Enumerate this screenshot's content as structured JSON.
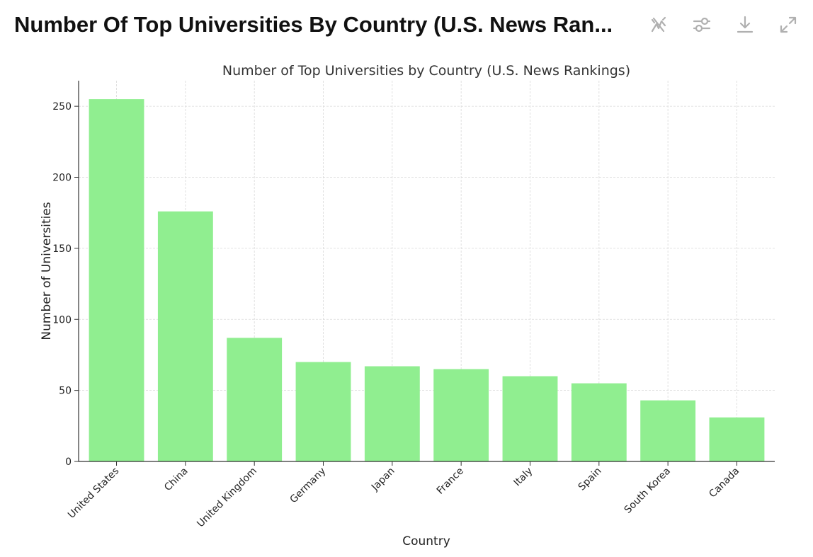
{
  "header": {
    "title": "Number Of Top Universities By Country (U.S. News Ran...",
    "toolbar": [
      {
        "name": "hide-interactive-button",
        "icon": "sparkle-off-icon"
      },
      {
        "name": "chart-settings-button",
        "icon": "sliders-icon"
      },
      {
        "name": "download-button",
        "icon": "download-icon"
      },
      {
        "name": "expand-button",
        "icon": "expand-icon"
      }
    ]
  },
  "colors": {
    "bar": "#90ee90",
    "grid": "#d9d9d9",
    "axis": "#333333",
    "text": "#222222",
    "icon": "#b0b0b0"
  },
  "chart_data": {
    "type": "bar",
    "title": "Number of Top Universities by Country (U.S. News Rankings)",
    "xlabel": "Country",
    "ylabel": "Number of Universities",
    "categories": [
      "United States",
      "China",
      "United Kingdom",
      "Germany",
      "Japan",
      "France",
      "Italy",
      "Spain",
      "South Korea",
      "Canada"
    ],
    "values": [
      255,
      176,
      87,
      70,
      67,
      65,
      60,
      55,
      43,
      31
    ],
    "ylim": [
      0,
      268
    ],
    "yticks": [
      0,
      50,
      100,
      150,
      200,
      250
    ],
    "grid": true
  }
}
